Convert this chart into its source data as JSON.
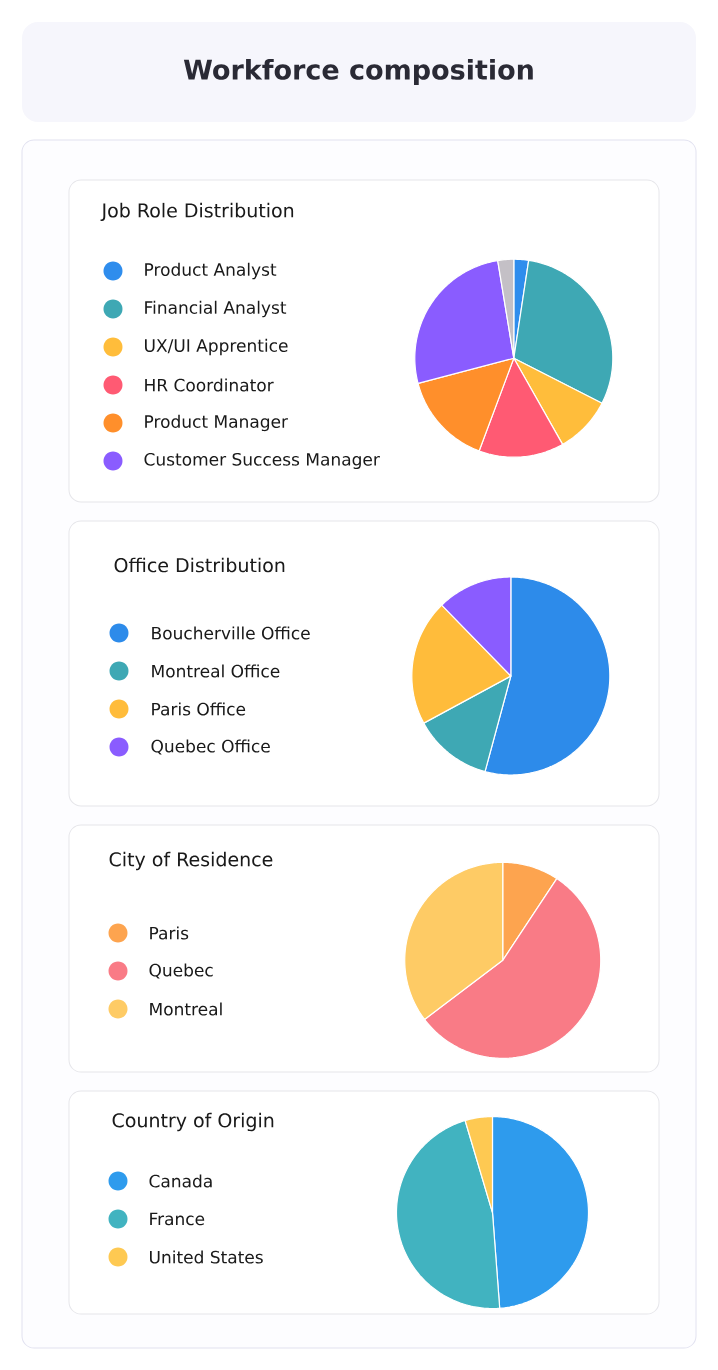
{
  "chart_data": [
    {
      "type": "other",
      "title": "Workforce composition"
    },
    {
      "type": "pie",
      "title": "Job Role Distribution",
      "categories": [
        "Product Analyst",
        "Financial Analyst",
        "UX/UI Apprentice",
        "HR Coordinator",
        "Product Manager",
        "Customer Success Manager",
        null
      ],
      "values": [
        2.4,
        30.1,
        9.3,
        13.9,
        15.2,
        26.5,
        2.6
      ],
      "colors": [
        "#2f8ded",
        "#3ea8b4",
        "#ffbd3b",
        "#ff5a73",
        "#ff8f2b",
        "#8a5cff",
        "#c4c0c6"
      ],
      "legend": "left"
    },
    {
      "type": "pie",
      "title": "Office Distribution",
      "categories": [
        "Boucherville Office",
        "Montreal Office",
        "Paris Office",
        "Quebec Office"
      ],
      "values": [
        54.2,
        12.9,
        20.6,
        12.3
      ],
      "colors": [
        "#2d8bea",
        "#3ea8b4",
        "#ffbc3b",
        "#8a5cff"
      ],
      "legend": "left"
    },
    {
      "type": "pie",
      "title": "City of Residence",
      "categories": [
        "Paris",
        "Quebec",
        "Montreal"
      ],
      "values": [
        9.3,
        55.4,
        35.3
      ],
      "colors": [
        "#fda44f",
        "#f97b86",
        "#fecb65"
      ],
      "legend": "left"
    },
    {
      "type": "pie",
      "title": "Country of Origin",
      "categories": [
        "Canada",
        "France",
        "United States"
      ],
      "values": [
        48.8,
        46.6,
        4.6
      ],
      "colors": [
        "#2e9bed",
        "#41b3c0",
        "#fec952"
      ],
      "legend": "left"
    }
  ]
}
